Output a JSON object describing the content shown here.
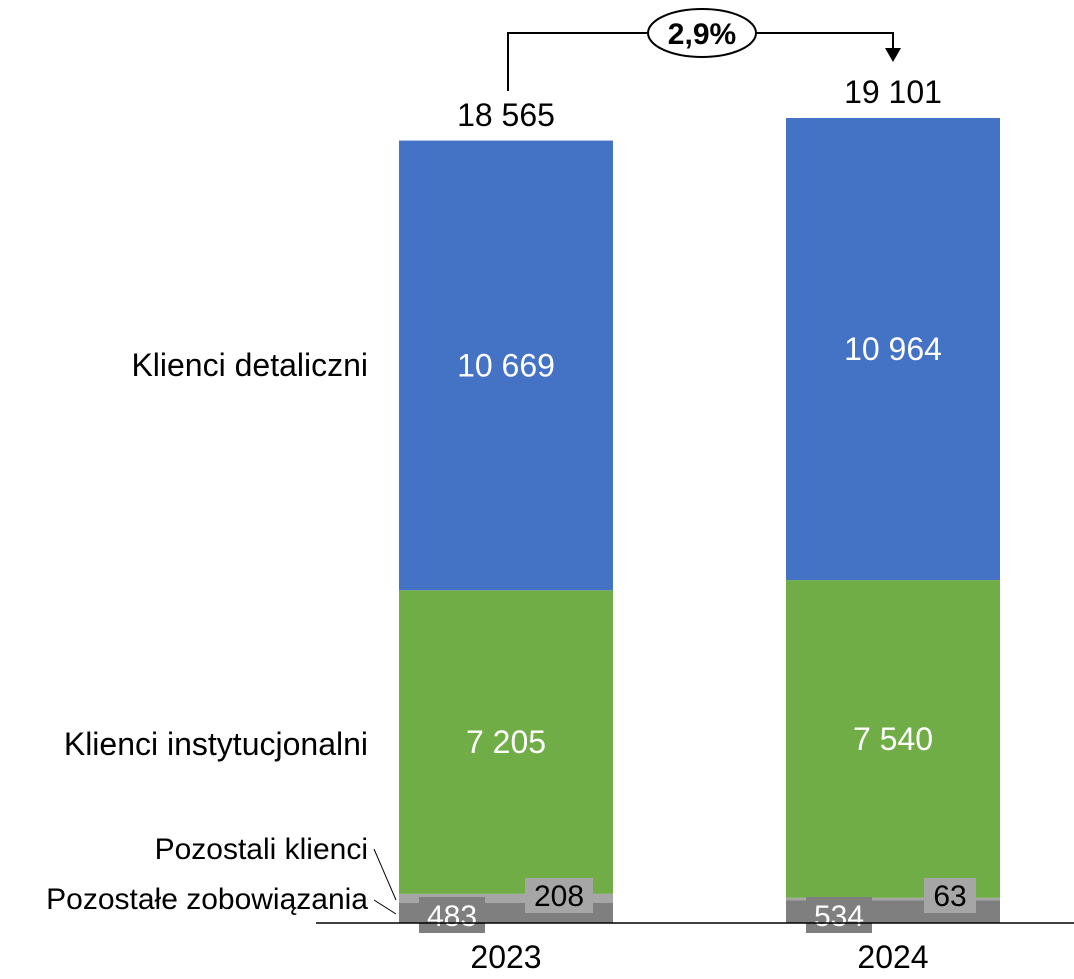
{
  "chart_data": {
    "type": "bar",
    "stacked": true,
    "categories": [
      "2023",
      "2024"
    ],
    "series": [
      {
        "name": "Pozostałe zobowiązania",
        "values": [
          483,
          534
        ],
        "color": "#7f7f7f",
        "label_color": "#ffffff",
        "label_bg": "#7f7f7f"
      },
      {
        "name": "Pozostali klienci",
        "values": [
          208,
          63
        ],
        "color": "#a6a6a6",
        "label_color": "#000000",
        "label_bg": "#a6a6a6"
      },
      {
        "name": "Klienci instytucjonalni",
        "values": [
          7205,
          7540
        ],
        "color": "#70ad47",
        "label_color": "#ffffff"
      },
      {
        "name": "Klienci detaliczni",
        "values": [
          10669,
          10964
        ],
        "color": "#4472c4",
        "label_color": "#ffffff"
      }
    ],
    "value_labels": [
      [
        "483",
        "534"
      ],
      [
        "208",
        "63"
      ],
      [
        "7 205",
        "7 540"
      ],
      [
        "10 669",
        "10 964"
      ]
    ],
    "totals": [
      18565,
      19101
    ],
    "total_labels": [
      "18 565",
      "19 101"
    ],
    "change_label": "2,9%",
    "legend_placement": "left",
    "grid": false,
    "ylim": [
      0,
      19101
    ]
  }
}
